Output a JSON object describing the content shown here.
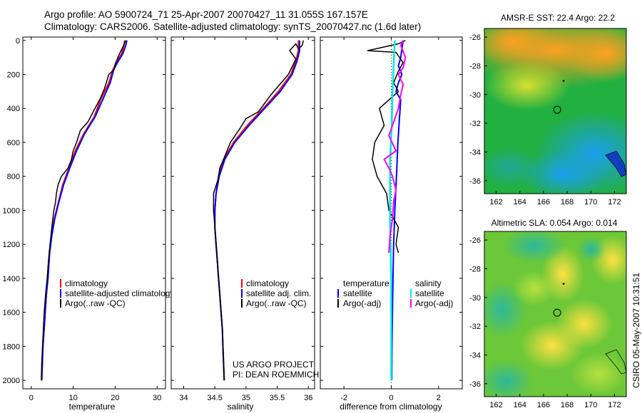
{
  "header": {
    "line1": "Argo profile: AO 5900724_71 25-Apr-2007 20070427_11 31.055S 167.157E",
    "line2": "Climatology: CARS2006. Satellite-adjusted climatology: synTS_20070427.nc (1.6d later)"
  },
  "credits": {
    "project": "US ARGO PROJECT",
    "pi": "PI: DEAN ROEMMICH",
    "stamp": "CSIRO 05-May-2007 10:31:51"
  },
  "colors": {
    "climatology": "#ff0000",
    "satellite": "#0000ff",
    "argo": "#000000",
    "sat_diff": "#00e5e5",
    "argo_diff": "#ff00ff"
  },
  "chart_data": [
    {
      "type": "line",
      "xlabel": "temperature",
      "ylim": [
        2050,
        -20
      ],
      "xlim": [
        -2,
        32
      ],
      "xticks": [
        0,
        10,
        20,
        30
      ],
      "yticks": [
        0,
        200,
        400,
        600,
        800,
        1000,
        1200,
        1400,
        1600,
        1800,
        2000
      ],
      "legend": [
        "climatology",
        "satellite-adjusted climatology",
        "Argo(..raw -QC)"
      ],
      "series": [
        {
          "name": "climatology",
          "color": "#ff0000",
          "width": 2,
          "points": [
            [
              22.3,
              0
            ],
            [
              22.0,
              40
            ],
            [
              21.5,
              80
            ],
            [
              20.5,
              120
            ],
            [
              19.5,
              170
            ],
            [
              18.5,
              250
            ],
            [
              16.5,
              350
            ],
            [
              15,
              450
            ],
            [
              12.5,
              550
            ],
            [
              10.5,
              650
            ],
            [
              9,
              750
            ],
            [
              7.5,
              850
            ],
            [
              6.5,
              950
            ],
            [
              5.5,
              1050
            ],
            [
              4.8,
              1150
            ],
            [
              4.3,
              1250
            ],
            [
              3.9,
              1400
            ],
            [
              3.6,
              1500
            ],
            [
              3.2,
              1650
            ],
            [
              2.8,
              1800
            ],
            [
              2.5,
              2000
            ]
          ]
        },
        {
          "name": "satellite-adjusted climatology",
          "color": "#0000ff",
          "width": 2,
          "points": [
            [
              22.8,
              0
            ],
            [
              22.4,
              40
            ],
            [
              21.8,
              80
            ],
            [
              20.8,
              120
            ],
            [
              19.7,
              170
            ],
            [
              18.8,
              250
            ],
            [
              17,
              350
            ],
            [
              15.2,
              450
            ],
            [
              12.7,
              550
            ],
            [
              10.8,
              650
            ],
            [
              9.2,
              750
            ],
            [
              7.7,
              850
            ],
            [
              6.6,
              950
            ],
            [
              5.6,
              1050
            ],
            [
              4.9,
              1150
            ],
            [
              4.4,
              1250
            ],
            [
              4,
              1400
            ],
            [
              3.6,
              1500
            ],
            [
              3.2,
              1650
            ],
            [
              2.8,
              1800
            ],
            [
              2.5,
              2000
            ]
          ]
        },
        {
          "name": "Argo(..raw -QC)",
          "color": "#000000",
          "width": 1.5,
          "points": [
            [
              22.5,
              0
            ],
            [
              22,
              30
            ],
            [
              21,
              80
            ],
            [
              20,
              140
            ],
            [
              19.8,
              170
            ],
            [
              18.5,
              200
            ],
            [
              17.5,
              280
            ],
            [
              16.5,
              340
            ],
            [
              15.2,
              400
            ],
            [
              13.5,
              480
            ],
            [
              11.7,
              530
            ],
            [
              10.8,
              600
            ],
            [
              10,
              650
            ],
            [
              9.6,
              700
            ],
            [
              8.8,
              750
            ],
            [
              7.2,
              800
            ],
            [
              6.4,
              850
            ],
            [
              6,
              900
            ],
            [
              5.8,
              950
            ],
            [
              5.4,
              1000
            ],
            [
              4.9,
              1100
            ],
            [
              4.5,
              1200
            ],
            [
              4.1,
              1300
            ],
            [
              3.8,
              1400
            ],
            [
              3.4,
              1500
            ],
            [
              3.1,
              1600
            ],
            [
              2.9,
              1700
            ],
            [
              2.7,
              1800
            ],
            [
              2.5,
              1900
            ],
            [
              2.4,
              2000
            ]
          ]
        }
      ]
    },
    {
      "type": "line",
      "xlabel": "salinity",
      "ylim": [
        2050,
        -20
      ],
      "xlim": [
        33.8,
        36.1
      ],
      "xticks": [
        34,
        34.5,
        35,
        35.5,
        36
      ],
      "legend": [
        "climatology",
        "satellite adj. clim.",
        "Argo(..raw -QC)"
      ],
      "series": [
        {
          "name": "climatology",
          "color": "#ff0000",
          "width": 2,
          "points": [
            [
              35.84,
              0
            ],
            [
              35.84,
              60
            ],
            [
              35.8,
              120
            ],
            [
              35.72,
              200
            ],
            [
              35.52,
              300
            ],
            [
              35.28,
              400
            ],
            [
              35.02,
              500
            ],
            [
              34.8,
              600
            ],
            [
              34.64,
              700
            ],
            [
              34.56,
              800
            ],
            [
              34.52,
              900
            ],
            [
              34.5,
              1000
            ],
            [
              34.5,
              1100
            ],
            [
              34.52,
              1200
            ],
            [
              34.54,
              1300
            ],
            [
              34.56,
              1400
            ],
            [
              34.58,
              1500
            ],
            [
              34.6,
              1600
            ],
            [
              34.62,
              1700
            ],
            [
              34.63,
              1800
            ],
            [
              34.64,
              1900
            ],
            [
              34.65,
              2000
            ]
          ]
        },
        {
          "name": "satellite adj. clim.",
          "color": "#0000ff",
          "width": 2,
          "points": [
            [
              35.86,
              0
            ],
            [
              35.86,
              60
            ],
            [
              35.82,
              120
            ],
            [
              35.74,
              200
            ],
            [
              35.55,
              300
            ],
            [
              35.3,
              400
            ],
            [
              35.05,
              500
            ],
            [
              34.82,
              600
            ],
            [
              34.66,
              700
            ],
            [
              34.57,
              800
            ],
            [
              34.52,
              900
            ],
            [
              34.5,
              1000
            ],
            [
              34.5,
              1100
            ],
            [
              34.52,
              1200
            ],
            [
              34.54,
              1300
            ],
            [
              34.56,
              1400
            ],
            [
              34.58,
              1500
            ],
            [
              34.6,
              1600
            ],
            [
              34.62,
              1700
            ],
            [
              34.63,
              1800
            ],
            [
              34.64,
              1900
            ],
            [
              34.65,
              2000
            ]
          ]
        },
        {
          "name": "Argo(..raw -QC)",
          "color": "#000000",
          "width": 1.5,
          "points": [
            [
              35.92,
              0
            ],
            [
              35.9,
              30
            ],
            [
              35.84,
              50
            ],
            [
              35.8,
              20
            ],
            [
              35.7,
              60
            ],
            [
              35.8,
              110
            ],
            [
              35.68,
              200
            ],
            [
              35.4,
              320
            ],
            [
              35.2,
              420
            ],
            [
              35,
              460
            ],
            [
              34.9,
              520
            ],
            [
              34.75,
              600
            ],
            [
              34.64,
              700
            ],
            [
              34.58,
              750
            ],
            [
              34.55,
              820
            ],
            [
              34.48,
              900
            ],
            [
              34.48,
              1000
            ],
            [
              34.5,
              1100
            ],
            [
              34.52,
              1200
            ],
            [
              34.54,
              1300
            ],
            [
              34.56,
              1400
            ],
            [
              34.58,
              1500
            ],
            [
              34.6,
              1600
            ],
            [
              34.62,
              1700
            ],
            [
              34.63,
              1800
            ],
            [
              34.64,
              1900
            ],
            [
              34.65,
              2000
            ]
          ]
        }
      ]
    },
    {
      "type": "line",
      "xlabel": "difference from climatology",
      "ylim": [
        2050,
        -20
      ],
      "xlim": [
        -3,
        3
      ],
      "xticks": [
        -2,
        0,
        2
      ],
      "legend_temperature": [
        "temperature",
        "satellite",
        "Argo(-adj)"
      ],
      "legend_salinity": [
        "salinity",
        "satellite",
        "Argo(-adj)"
      ],
      "series": [
        {
          "name": "temperature satellite",
          "color": "#0000ff",
          "width": 2,
          "points": [
            [
              0.5,
              0
            ],
            [
              0.45,
              50
            ],
            [
              0.4,
              100
            ],
            [
              0.3,
              150
            ],
            [
              0.45,
              200
            ],
            [
              0.3,
              250
            ],
            [
              0.2,
              300
            ],
            [
              0.4,
              350
            ],
            [
              0.35,
              450
            ],
            [
              0.28,
              600
            ],
            [
              0.22,
              800
            ],
            [
              0.15,
              1000
            ],
            [
              0.1,
              1200
            ],
            [
              0.06,
              1500
            ],
            [
              0.03,
              1800
            ],
            [
              0.02,
              2000
            ]
          ]
        },
        {
          "name": "temperature Argo(-adj)",
          "color": "#000000",
          "width": 1.5,
          "points": [
            [
              0.6,
              0
            ],
            [
              0.3,
              20
            ],
            [
              -1,
              60
            ],
            [
              0.2,
              70
            ],
            [
              0.5,
              130
            ],
            [
              0.3,
              180
            ],
            [
              0.1,
              250
            ],
            [
              0.3,
              300
            ],
            [
              -0.5,
              400
            ],
            [
              -0.3,
              500
            ],
            [
              -0.7,
              600
            ],
            [
              -0.8,
              700
            ],
            [
              -0.6,
              800
            ],
            [
              -0.2,
              900
            ],
            [
              -0.1,
              1000
            ],
            [
              0.3,
              1100
            ],
            [
              0.2,
              1200
            ],
            [
              0.3,
              1250
            ]
          ]
        },
        {
          "name": "salinity satellite",
          "color": "#00e5e5",
          "width": 2.5,
          "points": [
            [
              0.15,
              0
            ],
            [
              0.12,
              80
            ],
            [
              0.05,
              300
            ],
            [
              0.02,
              500
            ],
            [
              -0.05,
              700
            ],
            [
              -0.05,
              900
            ],
            [
              -0.05,
              1100
            ],
            [
              0,
              1400
            ],
            [
              0,
              1700
            ],
            [
              0,
              2000
            ]
          ]
        },
        {
          "name": "salinity Argo(-adj)",
          "color": "#ff00ff",
          "width": 2,
          "points": [
            [
              0.5,
              0
            ],
            [
              0.4,
              30
            ],
            [
              0.6,
              100
            ],
            [
              0.5,
              160
            ],
            [
              0.3,
              200
            ],
            [
              0.5,
              260
            ],
            [
              0.4,
              320
            ],
            [
              0.3,
              400
            ],
            [
              0.1,
              480
            ],
            [
              -0.1,
              560
            ],
            [
              0.2,
              650
            ],
            [
              -0.3,
              700
            ],
            [
              -0.1,
              750
            ],
            [
              0.05,
              800
            ],
            [
              0.2,
              880
            ],
            [
              0.1,
              950
            ],
            [
              0.05,
              1050
            ],
            [
              -0.05,
              1150
            ],
            [
              -0.1,
              1250
            ]
          ]
        }
      ]
    },
    {
      "type": "heatmap",
      "title": "AMSR-E SST: 22.4 Argo: 22.2",
      "xticks": [
        162,
        164,
        166,
        168,
        170,
        172
      ],
      "yticks": [
        -26,
        -28,
        -30,
        -32,
        -34,
        -36
      ],
      "xlim": [
        161,
        173
      ],
      "ylim": [
        -36.9,
        -25.4
      ],
      "argo_position": [
        167.157,
        -31.055
      ]
    },
    {
      "type": "heatmap",
      "title": "Altimetric SLA: 0.054 Argo: 0.014",
      "xticks": [
        162,
        164,
        166,
        168,
        170,
        172
      ],
      "yticks": [
        -26,
        -28,
        -30,
        -32,
        -34,
        -36
      ],
      "xlim": [
        161,
        173
      ],
      "ylim": [
        -36.9,
        -25.4
      ],
      "argo_position": [
        167.157,
        -31.055
      ]
    }
  ]
}
